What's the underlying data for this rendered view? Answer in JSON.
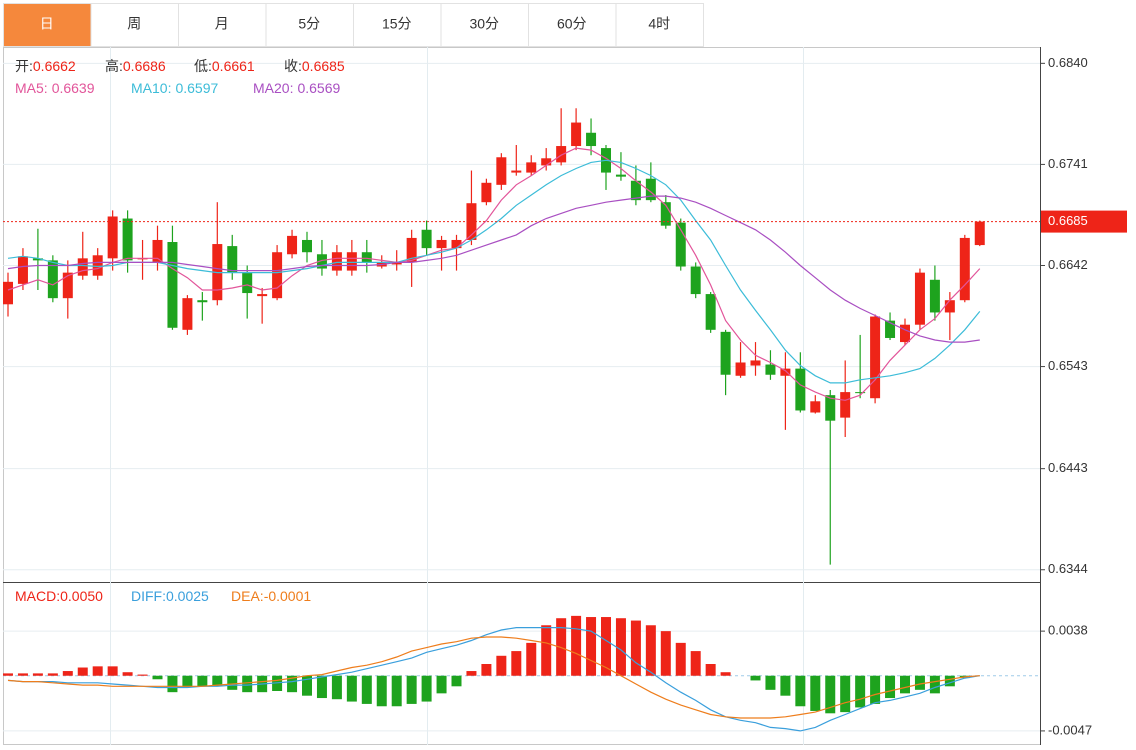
{
  "tabs": [
    "日",
    "周",
    "月",
    "5分",
    "15分",
    "30分",
    "60分",
    "4时"
  ],
  "active_tab": 0,
  "chart_data": [
    {
      "type": "candlestick",
      "open": [
        0.6604,
        0.6624,
        0.6649,
        0.6647,
        0.661,
        0.6632,
        0.6632,
        0.6649,
        0.6688,
        0.6649,
        0.6645,
        0.6665,
        0.6579,
        0.6608,
        0.6608,
        0.6661,
        0.6635,
        0.6612,
        0.661,
        0.6653,
        0.6667,
        0.6653,
        0.6637,
        0.6637,
        0.6655,
        0.6641,
        0.6643,
        0.6645,
        0.6677,
        0.6659,
        0.6659,
        0.6667,
        0.6704,
        0.6721,
        0.6733,
        0.6733,
        0.674,
        0.6743,
        0.6759,
        0.6772,
        0.6757,
        0.6731,
        0.6725,
        0.6727,
        0.6704,
        0.6684,
        0.6641,
        0.6614,
        0.6577,
        0.6534,
        0.6544,
        0.6545,
        0.6534,
        0.6541,
        0.6498,
        0.6515,
        0.6493,
        0.6518,
        0.6512,
        0.6588,
        0.6567,
        0.6584,
        0.6628,
        0.6596,
        0.6608,
        0.6662
      ],
      "high": [
        0.6635,
        0.6659,
        0.6678,
        0.6652,
        0.6647,
        0.6675,
        0.6659,
        0.6696,
        0.6696,
        0.6667,
        0.6681,
        0.6681,
        0.6613,
        0.6616,
        0.6704,
        0.6672,
        0.6642,
        0.662,
        0.6662,
        0.6677,
        0.6675,
        0.6667,
        0.6662,
        0.6667,
        0.6667,
        0.6652,
        0.6657,
        0.6677,
        0.6686,
        0.6671,
        0.6672,
        0.6735,
        0.6727,
        0.6752,
        0.676,
        0.675,
        0.6757,
        0.6796,
        0.6796,
        0.6786,
        0.676,
        0.6753,
        0.674,
        0.6743,
        0.6711,
        0.6688,
        0.6645,
        0.6616,
        0.6579,
        0.6567,
        0.6567,
        0.6559,
        0.6557,
        0.6557,
        0.6515,
        0.652,
        0.6549,
        0.6574,
        0.6594,
        0.6596,
        0.659,
        0.6639,
        0.6642,
        0.6616,
        0.6672,
        0.6686
      ],
      "low": [
        0.6592,
        0.6618,
        0.6618,
        0.6606,
        0.659,
        0.6628,
        0.6628,
        0.6637,
        0.6635,
        0.6628,
        0.6637,
        0.6579,
        0.6574,
        0.6588,
        0.6603,
        0.6628,
        0.659,
        0.6585,
        0.6608,
        0.6649,
        0.6645,
        0.6632,
        0.6632,
        0.6632,
        0.6635,
        0.6639,
        0.6637,
        0.6621,
        0.6652,
        0.6637,
        0.6637,
        0.6662,
        0.6701,
        0.6716,
        0.673,
        0.673,
        0.6735,
        0.674,
        0.6755,
        0.675,
        0.6716,
        0.6725,
        0.6701,
        0.6704,
        0.6678,
        0.6637,
        0.661,
        0.6576,
        0.6515,
        0.6532,
        0.6534,
        0.653,
        0.6481,
        0.6498,
        0.6497,
        0.6349,
        0.6474,
        0.6512,
        0.6507,
        0.6569,
        0.6564,
        0.6579,
        0.6588,
        0.6569,
        0.6606,
        0.6661
      ],
      "close": [
        0.6626,
        0.6651,
        0.6647,
        0.661,
        0.6635,
        0.6649,
        0.6652,
        0.669,
        0.6647,
        0.6649,
        0.6667,
        0.6581,
        0.661,
        0.6606,
        0.6663,
        0.6635,
        0.6615,
        0.6614,
        0.6655,
        0.6671,
        0.6655,
        0.6639,
        0.6655,
        0.6655,
        0.6645,
        0.6645,
        0.6645,
        0.6669,
        0.6659,
        0.6667,
        0.6667,
        0.6703,
        0.6723,
        0.6748,
        0.6735,
        0.6743,
        0.6747,
        0.6759,
        0.6782,
        0.6759,
        0.6733,
        0.6729,
        0.6706,
        0.6706,
        0.6681,
        0.6641,
        0.6614,
        0.6579,
        0.6535,
        0.6547,
        0.6549,
        0.6535,
        0.6541,
        0.65,
        0.6509,
        0.649,
        0.6518,
        0.6517,
        0.6592,
        0.6571,
        0.6584,
        0.6635,
        0.6596,
        0.6608,
        0.6669,
        0.6685
      ],
      "up_color": "#ee2418",
      "down_color": "#1ea31e",
      "info_labels": [
        "开:",
        "高:",
        "低:",
        "收:"
      ],
      "series": [
        {
          "name": "MA5:",
          "color": "#e2559a",
          "values": [
            0.6618,
            0.6623,
            0.6628,
            0.6623,
            0.6632,
            0.6637,
            0.6639,
            0.6645,
            0.6649,
            0.6649,
            0.6649,
            0.6639,
            0.663,
            0.6618,
            0.6618,
            0.662,
            0.6623,
            0.6618,
            0.662,
            0.6632,
            0.6642,
            0.6647,
            0.6649,
            0.6649,
            0.6649,
            0.6647,
            0.6645,
            0.6647,
            0.6652,
            0.6657,
            0.6659,
            0.6672,
            0.6686,
            0.6706,
            0.6721,
            0.673,
            0.674,
            0.675,
            0.6757,
            0.6755,
            0.6747,
            0.6737,
            0.6725,
            0.6714,
            0.6701,
            0.6677,
            0.6652,
            0.6623,
            0.6588,
            0.6569,
            0.6554,
            0.6547,
            0.6539,
            0.6525,
            0.6518,
            0.6512,
            0.651,
            0.6515,
            0.653,
            0.6549,
            0.6564,
            0.6579,
            0.659,
            0.6608,
            0.6623,
            0.6639
          ]
        },
        {
          "name": "MA10:",
          "color": "#3cbcd8",
          "values": [
            0.6649,
            0.6651,
            0.6649,
            0.6645,
            0.6642,
            0.6642,
            0.6641,
            0.6642,
            0.6645,
            0.6645,
            0.6645,
            0.6642,
            0.6639,
            0.6637,
            0.6635,
            0.6635,
            0.6635,
            0.6635,
            0.6635,
            0.6637,
            0.6639,
            0.6642,
            0.6645,
            0.6645,
            0.6645,
            0.6645,
            0.6645,
            0.6649,
            0.6652,
            0.6655,
            0.6659,
            0.6667,
            0.6677,
            0.6688,
            0.6701,
            0.6711,
            0.6721,
            0.673,
            0.6737,
            0.6743,
            0.6745,
            0.6743,
            0.6737,
            0.673,
            0.6721,
            0.6706,
            0.6686,
            0.6667,
            0.6642,
            0.6618,
            0.6598,
            0.6579,
            0.6559,
            0.6544,
            0.6534,
            0.6527,
            0.6527,
            0.653,
            0.6532,
            0.6534,
            0.6537,
            0.6541,
            0.6551,
            0.6564,
            0.6579,
            0.6597
          ]
        },
        {
          "name": "MA20:",
          "color": "#a94fc2",
          "values": [
            0.6639,
            0.6641,
            0.6642,
            0.6642,
            0.6642,
            0.6644,
            0.6645,
            0.6645,
            0.6645,
            0.6645,
            0.6645,
            0.6645,
            0.6643,
            0.6641,
            0.6639,
            0.6637,
            0.6637,
            0.6637,
            0.6637,
            0.6639,
            0.6641,
            0.6642,
            0.6642,
            0.6642,
            0.6642,
            0.6643,
            0.6645,
            0.6645,
            0.6647,
            0.6649,
            0.6652,
            0.6657,
            0.6662,
            0.6667,
            0.6672,
            0.6681,
            0.6688,
            0.6693,
            0.6698,
            0.6701,
            0.6704,
            0.6706,
            0.6708,
            0.671,
            0.671,
            0.6708,
            0.6704,
            0.6698,
            0.6691,
            0.6684,
            0.6677,
            0.6667,
            0.6655,
            0.6642,
            0.663,
            0.6618,
            0.6608,
            0.66,
            0.6593,
            0.6586,
            0.6579,
            0.6573,
            0.6569,
            0.6567,
            0.6567,
            0.6569
          ]
        }
      ],
      "ylim": [
        0.6332,
        0.6856
      ],
      "yticks": [
        {
          "value": 0.684,
          "label": "0.6840"
        },
        0.6741,
        0.6642,
        0.6543,
        0.6443,
        0.6344
      ],
      "grid": true,
      "last_price_line": true
    },
    {
      "type": "macd",
      "series": [
        {
          "name": "MACD:",
          "type": "bar",
          "color": "#ee2418",
          "down_color": "#1ea31e",
          "values": [
            0.0002,
            0.0002,
            0.0002,
            0.0002,
            0.0004,
            0.0007,
            0.0008,
            0.0008,
            0.0003,
            0.0001,
            -0.0003,
            -0.0014,
            -0.001,
            -0.0009,
            -0.0009,
            -0.0012,
            -0.0014,
            -0.0014,
            -0.0013,
            -0.0014,
            -0.0017,
            -0.0019,
            -0.002,
            -0.0022,
            -0.0024,
            -0.0026,
            -0.0026,
            -0.0024,
            -0.0022,
            -0.0015,
            -0.0009,
            0.0004,
            0.001,
            0.0017,
            0.0021,
            0.0028,
            0.0043,
            0.0049,
            0.0051,
            0.005,
            0.005,
            0.0049,
            0.0047,
            0.0043,
            0.0038,
            0.0028,
            0.0021,
            0.001,
            0.0003,
            0,
            -0.0004,
            -0.0012,
            -0.0017,
            -0.0026,
            -0.003,
            -0.0032,
            -0.0031,
            -0.0027,
            -0.0024,
            -0.0019,
            -0.0015,
            -0.0012,
            -0.0015,
            -0.0009,
            -0.0002,
            0
          ]
        },
        {
          "name": "DIFF:",
          "type": "line",
          "color": "#3a9fdc",
          "values": [
            -0.0004,
            -0.0005,
            -0.0005,
            -0.0005,
            -0.0006,
            -0.0006,
            -0.0006,
            -0.0007,
            -0.0008,
            -0.0009,
            -0.001,
            -0.001,
            -0.001,
            -0.0009,
            -0.0009,
            -0.0008,
            -0.0008,
            -0.0007,
            -0.0006,
            -0.0005,
            -0.0003,
            -0.0001,
            0.0001,
            0.0003,
            0.0006,
            0.0009,
            0.0012,
            0.0015,
            0.002,
            0.0023,
            0.0026,
            0.003,
            0.0035,
            0.0039,
            0.0041,
            0.0041,
            0.0041,
            0.0041,
            0.004,
            0.0038,
            0.003,
            0.0022,
            0.0011,
            0.0003,
            -0.0006,
            -0.0014,
            -0.0021,
            -0.0029,
            -0.0035,
            -0.0038,
            -0.004,
            -0.0044,
            -0.0045,
            -0.0047,
            -0.0044,
            -0.0038,
            -0.0033,
            -0.0028,
            -0.0023,
            -0.0021,
            -0.0018,
            -0.0015,
            -0.001,
            -0.0006,
            -0.0002,
            0
          ]
        },
        {
          "name": "DEA:",
          "type": "line",
          "color": "#ee7d1c",
          "values": [
            -0.0004,
            -0.0005,
            -0.0005,
            -0.0006,
            -0.0007,
            -0.0008,
            -0.0008,
            -0.0009,
            -0.0009,
            -0.0009,
            -0.0009,
            -0.0009,
            -0.0009,
            -0.0009,
            -0.0008,
            -0.0007,
            -0.0006,
            -0.0005,
            -0.0004,
            -0.0002,
            0,
            0.0001,
            0.0004,
            0.0007,
            0.0009,
            0.0012,
            0.0016,
            0.0021,
            0.0024,
            0.0027,
            0.0029,
            0.0032,
            0.0033,
            0.0033,
            0.0032,
            0.003,
            0.0028,
            0.0024,
            0.0019,
            0.0013,
            0.0007,
            0,
            -0.0007,
            -0.0014,
            -0.002,
            -0.0025,
            -0.0029,
            -0.0033,
            -0.0035,
            -0.0036,
            -0.0036,
            -0.0036,
            -0.0035,
            -0.0033,
            -0.0031,
            -0.0027,
            -0.0023,
            -0.002,
            -0.0016,
            -0.0013,
            -0.001,
            -0.0007,
            -0.0005,
            -0.0003,
            -0.0001,
            0
          ]
        }
      ],
      "readout": [
        {
          "value": 0.005,
          "label": "0.0050"
        },
        0.0025,
        -0.0001
      ],
      "ylim": [
        -0.0059,
        0.0079
      ],
      "yticks": [
        -0.0047,
        0.0038
      ],
      "grid": true
    }
  ]
}
